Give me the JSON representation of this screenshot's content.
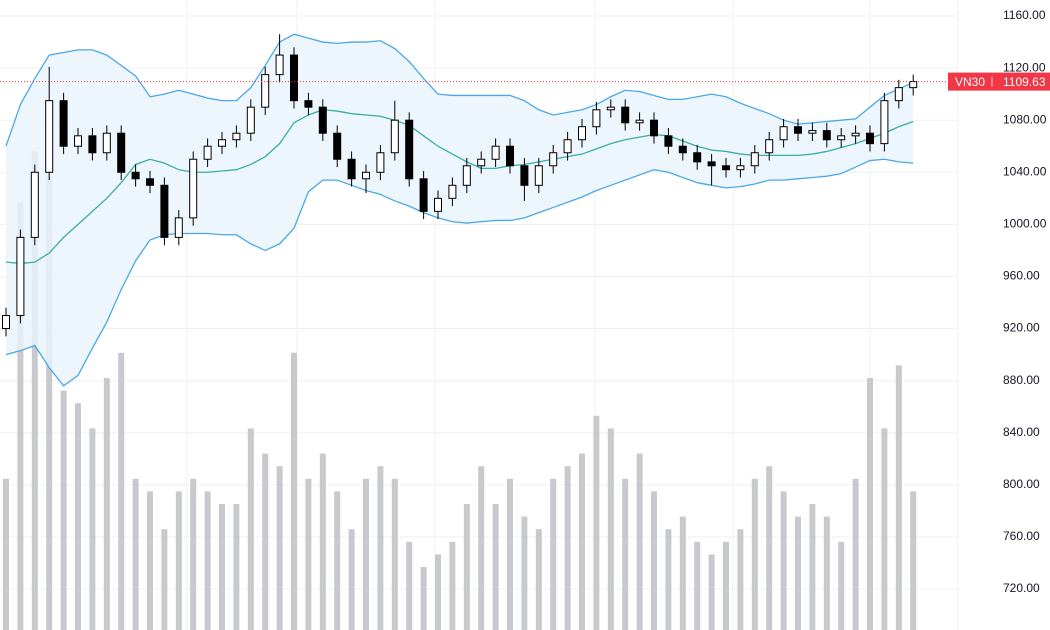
{
  "chart_data": {
    "type": "candlestick",
    "symbol": "VN30",
    "last_price": 1109.63,
    "ylim": [
      688.5,
      1172.3
    ],
    "yticks": [
      {
        "value": 1160,
        "label": "1160.00"
      },
      {
        "value": 1120,
        "label": "1120.00"
      },
      {
        "value": 1080,
        "label": "1080.00"
      },
      {
        "value": 1040,
        "label": "1040.00"
      },
      {
        "value": 1000,
        "label": "1000.00"
      },
      {
        "value": 960,
        "label": "960.00"
      },
      {
        "value": 920,
        "label": "920.00"
      },
      {
        "value": 880,
        "label": "880.00"
      },
      {
        "value": 840,
        "label": "840.00"
      },
      {
        "value": 800,
        "label": "800.00"
      },
      {
        "value": 760,
        "label": "760.00"
      },
      {
        "value": 720,
        "label": "720.00"
      }
    ],
    "grid": true,
    "up_color": "#ffffff",
    "down_color": "#000000",
    "open": [
      920,
      930,
      990,
      1040,
      1095,
      1060,
      1068,
      1055,
      1070,
      1040,
      1035,
      1030,
      990,
      1005,
      1050,
      1060,
      1065,
      1070,
      1090,
      1115,
      1130,
      1095,
      1090,
      1070,
      1050,
      1035,
      1040,
      1055,
      1080,
      1035,
      1010,
      1020,
      1030,
      1045,
      1050,
      1060,
      1045,
      1030,
      1045,
      1055,
      1065,
      1075,
      1088,
      1090,
      1078,
      1080,
      1068,
      1060,
      1055,
      1048,
      1045,
      1042,
      1045,
      1055,
      1065,
      1075,
      1070,
      1072,
      1065,
      1068,
      1070,
      1062,
      1095,
      1105
    ],
    "high": [
      936,
      996,
      1046,
      1121,
      1101,
      1074,
      1074,
      1076,
      1076,
      1046,
      1041,
      1036,
      1011,
      1056,
      1066,
      1071,
      1076,
      1096,
      1121,
      1146,
      1136,
      1101,
      1096,
      1076,
      1056,
      1046,
      1061,
      1095,
      1086,
      1041,
      1026,
      1036,
      1051,
      1056,
      1066,
      1066,
      1051,
      1051,
      1061,
      1071,
      1081,
      1094,
      1096,
      1096,
      1086,
      1086,
      1074,
      1066,
      1061,
      1054,
      1051,
      1051,
      1061,
      1071,
      1081,
      1081,
      1078,
      1078,
      1074,
      1076,
      1076,
      1101,
      1111,
      1115
    ],
    "low": [
      914,
      924,
      984,
      1034,
      1054,
      1054,
      1049,
      1049,
      1034,
      1029,
      1024,
      984,
      984,
      999,
      1044,
      1054,
      1059,
      1064,
      1084,
      1109,
      1089,
      1084,
      1064,
      1044,
      1029,
      1024,
      1034,
      1049,
      1029,
      1004,
      1004,
      1014,
      1024,
      1039,
      1044,
      1039,
      1018,
      1024,
      1039,
      1049,
      1059,
      1069,
      1082,
      1072,
      1072,
      1062,
      1054,
      1049,
      1042,
      1030,
      1036,
      1036,
      1039,
      1049,
      1059,
      1064,
      1064,
      1059,
      1059,
      1062,
      1056,
      1056,
      1089,
      1099
    ],
    "close": [
      930,
      990,
      1040,
      1095,
      1060,
      1068,
      1055,
      1070,
      1040,
      1035,
      1030,
      990,
      1005,
      1050,
      1060,
      1065,
      1070,
      1090,
      1115,
      1130,
      1095,
      1090,
      1070,
      1050,
      1035,
      1040,
      1055,
      1080,
      1035,
      1010,
      1020,
      1030,
      1045,
      1050,
      1060,
      1045,
      1030,
      1045,
      1055,
      1065,
      1075,
      1088,
      1090,
      1078,
      1080,
      1068,
      1060,
      1055,
      1048,
      1045,
      1042,
      1045,
      1055,
      1065,
      1075,
      1070,
      1072,
      1065,
      1068,
      1070,
      1062,
      1095,
      1105,
      1109.63
    ],
    "bands": {
      "color": "#4aa8e8",
      "fill": "#eaf4fc",
      "middle_color": "#3aaea0",
      "upper": [
        1060,
        1092,
        1112,
        1130,
        1132,
        1134,
        1134,
        1130,
        1122,
        1114,
        1098,
        1100,
        1103,
        1100,
        1097,
        1095,
        1095,
        1105,
        1122,
        1140,
        1146,
        1143,
        1140,
        1139,
        1140,
        1140,
        1141,
        1135,
        1125,
        1112,
        1100,
        1099,
        1099,
        1099,
        1099,
        1099,
        1095,
        1088,
        1084,
        1086,
        1088,
        1092,
        1098,
        1103,
        1102,
        1099,
        1096,
        1096,
        1098,
        1100,
        1098,
        1093,
        1089,
        1085,
        1080,
        1077,
        1078,
        1079,
        1080,
        1081,
        1090,
        1099,
        1104,
        1109
      ],
      "middle": [
        971,
        970,
        971,
        978,
        990,
        1000,
        1010,
        1020,
        1032,
        1046,
        1050,
        1047,
        1042,
        1040,
        1040,
        1041,
        1042,
        1046,
        1052,
        1062,
        1078,
        1084,
        1088,
        1087,
        1085,
        1084,
        1083,
        1080,
        1076,
        1068,
        1060,
        1054,
        1048,
        1043,
        1043,
        1045,
        1046,
        1048,
        1050,
        1052,
        1054,
        1058,
        1062,
        1065,
        1067,
        1069,
        1068,
        1064,
        1060,
        1057,
        1056,
        1054,
        1053,
        1053,
        1053,
        1053,
        1054,
        1056,
        1059,
        1062,
        1066,
        1070,
        1075,
        1079
      ],
      "lower": [
        900,
        903,
        907,
        890,
        876,
        884,
        905,
        925,
        950,
        972,
        988,
        992,
        993,
        993,
        993,
        992,
        992,
        985,
        980,
        985,
        997,
        1025,
        1034,
        1034,
        1030,
        1026,
        1023,
        1018,
        1014,
        1009,
        1005,
        1002,
        1001,
        1002,
        1003,
        1003,
        1005,
        1009,
        1013,
        1017,
        1021,
        1026,
        1030,
        1034,
        1038,
        1042,
        1040,
        1036,
        1032,
        1030,
        1028,
        1029,
        1031,
        1034,
        1034,
        1035,
        1036,
        1037,
        1039,
        1044,
        1049,
        1050,
        1048,
        1047
      ]
    },
    "volume": {
      "color": "#c8c9cc",
      "lim": [
        0,
        250
      ],
      "values": [
        60,
        170,
        190,
        180,
        95,
        90,
        80,
        100,
        110,
        60,
        55,
        40,
        55,
        60,
        55,
        50,
        50,
        80,
        70,
        65,
        110,
        60,
        70,
        55,
        40,
        60,
        65,
        60,
        35,
        25,
        30,
        35,
        50,
        65,
        50,
        60,
        45,
        40,
        60,
        65,
        70,
        85,
        80,
        60,
        70,
        55,
        40,
        45,
        35,
        30,
        35,
        40,
        60,
        65,
        55,
        45,
        50,
        45,
        35,
        60,
        100,
        80,
        105,
        55
      ]
    },
    "tag_color": "#f23645"
  }
}
